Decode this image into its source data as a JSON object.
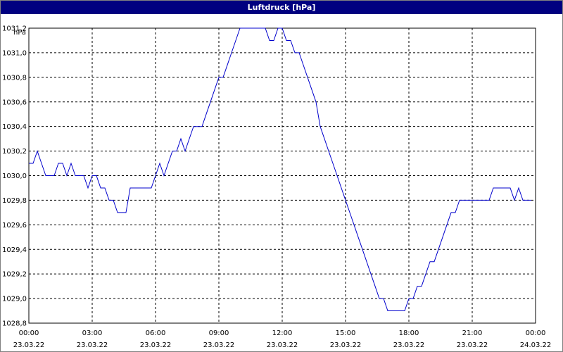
{
  "window": {
    "title": "Luftdruck [hPa]"
  },
  "chart_data": {
    "type": "line",
    "title": "Luftdruck [hPa]",
    "ylabel": "hPa",
    "xlabel": "",
    "ylim": [
      1028.8,
      1031.2
    ],
    "xlim_hours": [
      0,
      24
    ],
    "grid": true,
    "legend": "none",
    "y_ticks": [
      {
        "value": 1028.8,
        "label": "1028,8"
      },
      {
        "value": 1029.0,
        "label": "1029,0"
      },
      {
        "value": 1029.2,
        "label": "1029,2"
      },
      {
        "value": 1029.4,
        "label": "1029,4"
      },
      {
        "value": 1029.6,
        "label": "1029,6"
      },
      {
        "value": 1029.8,
        "label": "1029,8"
      },
      {
        "value": 1030.0,
        "label": "1030,0"
      },
      {
        "value": 1030.2,
        "label": "1030,2"
      },
      {
        "value": 1030.4,
        "label": "1030,4"
      },
      {
        "value": 1030.6,
        "label": "1030,6"
      },
      {
        "value": 1030.8,
        "label": "1030,8"
      },
      {
        "value": 1031.0,
        "label": "1031,0"
      },
      {
        "value": 1031.2,
        "label": "1031,2"
      }
    ],
    "x_ticks": [
      {
        "value": 0,
        "time": "00:00",
        "date": "23.03.22"
      },
      {
        "value": 3,
        "time": "03:00",
        "date": "23.03.22"
      },
      {
        "value": 6,
        "time": "06:00",
        "date": "23.03.22"
      },
      {
        "value": 9,
        "time": "09:00",
        "date": "23.03.22"
      },
      {
        "value": 12,
        "time": "12:00",
        "date": "23.03.22"
      },
      {
        "value": 15,
        "time": "15:00",
        "date": "23.03.22"
      },
      {
        "value": 18,
        "time": "18:00",
        "date": "23.03.22"
      },
      {
        "value": 21,
        "time": "21:00",
        "date": "23.03.22"
      },
      {
        "value": 24,
        "time": "00:00",
        "date": "24.03.22"
      }
    ],
    "series": [
      {
        "color": "#0000cc",
        "x": [
          0,
          0.2,
          0.4,
          0.6,
          0.8,
          1.0,
          1.2,
          1.4,
          1.6,
          1.8,
          2.0,
          2.2,
          2.4,
          2.6,
          2.8,
          3.0,
          3.2,
          3.4,
          3.6,
          3.8,
          4.0,
          4.2,
          4.4,
          4.6,
          4.8,
          5.0,
          5.2,
          5.4,
          5.6,
          5.8,
          6.0,
          6.2,
          6.4,
          6.6,
          6.8,
          7.0,
          7.2,
          7.4,
          7.6,
          7.8,
          8.0,
          8.2,
          8.4,
          8.6,
          8.8,
          9.0,
          9.2,
          9.4,
          9.6,
          9.8,
          10.0,
          10.2,
          10.4,
          10.6,
          10.8,
          11.0,
          11.2,
          11.4,
          11.6,
          11.8,
          12.0,
          12.2,
          12.4,
          12.6,
          12.8,
          13.0,
          13.2,
          13.4,
          13.6,
          13.8,
          14.0,
          14.2,
          14.4,
          14.6,
          14.8,
          15.0,
          15.2,
          15.4,
          15.6,
          15.8,
          16.0,
          16.2,
          16.4,
          16.6,
          16.8,
          17.0,
          17.2,
          17.4,
          17.6,
          17.8,
          18.0,
          18.2,
          18.4,
          18.6,
          18.8,
          19.0,
          19.2,
          19.4,
          19.6,
          19.8,
          20.0,
          20.2,
          20.4,
          20.6,
          20.8,
          21.0,
          21.2,
          21.4,
          21.6,
          21.8,
          22.0,
          22.2,
          22.4,
          22.6,
          22.8,
          23.0,
          23.2,
          23.4,
          23.6,
          23.8
        ],
        "y": [
          1030.1,
          1030.1,
          1030.2,
          1030.1,
          1030.0,
          1030.0,
          1030.0,
          1030.1,
          1030.1,
          1030.0,
          1030.1,
          1030.0,
          1030.0,
          1030.0,
          1029.9,
          1030.0,
          1030.0,
          1029.9,
          1029.9,
          1029.8,
          1029.8,
          1029.7,
          1029.7,
          1029.7,
          1029.9,
          1029.9,
          1029.9,
          1029.9,
          1029.9,
          1029.9,
          1030.0,
          1030.1,
          1030.0,
          1030.1,
          1030.2,
          1030.2,
          1030.3,
          1030.2,
          1030.3,
          1030.4,
          1030.4,
          1030.4,
          1030.5,
          1030.6,
          1030.7,
          1030.8,
          1030.8,
          1030.9,
          1031.0,
          1031.1,
          1031.2,
          1031.2,
          1031.2,
          1031.2,
          1031.2,
          1031.2,
          1031.2,
          1031.1,
          1031.1,
          1031.2,
          1031.2,
          1031.1,
          1031.1,
          1031.0,
          1031.0,
          1030.9,
          1030.8,
          1030.7,
          1030.6,
          1030.4,
          1030.3,
          1030.2,
          1030.1,
          1030.0,
          1029.9,
          1029.8,
          1029.7,
          1029.6,
          1029.5,
          1029.4,
          1029.3,
          1029.2,
          1029.1,
          1029.0,
          1029.0,
          1028.9,
          1028.9,
          1028.9,
          1028.9,
          1028.9,
          1029.0,
          1029.0,
          1029.1,
          1029.1,
          1029.2,
          1029.3,
          1029.3,
          1029.4,
          1029.5,
          1029.6,
          1029.7,
          1029.7,
          1029.8,
          1029.8,
          1029.8,
          1029.8,
          1029.8,
          1029.8,
          1029.8,
          1029.8,
          1029.9,
          1029.9,
          1029.9,
          1029.9,
          1029.9,
          1029.8,
          1029.9,
          1029.8,
          1029.8,
          1029.8
        ]
      }
    ]
  }
}
